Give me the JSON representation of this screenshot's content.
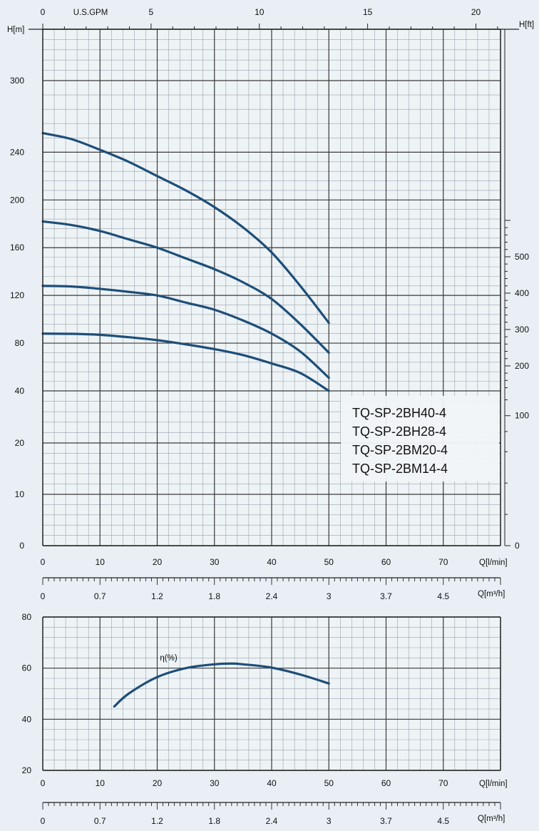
{
  "colors": {
    "curve": "#1d4e79",
    "grid_major": "#3a3a3a",
    "grid_minor": "#9aa4ad",
    "axis": "#222222"
  },
  "chart_data": [
    {
      "type": "line",
      "title": "",
      "xlabel": "Q[l/min]",
      "xlabel_secondary": "Q[m³/h]",
      "xlabel_top": "U.S.GPM",
      "ylabel": "H[m]",
      "ylabel_right": "H[ft]",
      "x_ticks": [
        "0",
        "10",
        "20",
        "30",
        "40",
        "50",
        "60",
        "70"
      ],
      "x_secondary_ticks": [
        "0",
        "0.7",
        "1.2",
        "1.8",
        "2.4",
        "3",
        "3.7",
        "4.5"
      ],
      "x_top_ticks": [
        "0",
        "5",
        "10",
        "15",
        "20"
      ],
      "y_ticks": [
        "0",
        "10",
        "20",
        "40",
        "80",
        "120",
        "160",
        "200",
        "240",
        "300"
      ],
      "y_right_ticks": [
        "0",
        "100",
        "200",
        "300",
        "400",
        "500"
      ],
      "grid": true,
      "legend": {
        "placement": "right",
        "entries": [
          "TQ-SP-2BH40-4",
          "TQ-SP-2BH28-4",
          "TQ-SP-2BM20-4",
          "TQ-SP-2BM14-4"
        ]
      },
      "series": [
        {
          "x": [
            0,
            5,
            10,
            15,
            20,
            25,
            30,
            35,
            40,
            45,
            50
          ],
          "y": [
            256,
            251,
            242,
            232,
            220,
            208,
            194,
            177,
            156,
            128,
            97
          ]
        },
        {
          "x": [
            0,
            5,
            10,
            15,
            20,
            25,
            30,
            35,
            40,
            45,
            50
          ],
          "y": [
            182,
            179,
            174,
            167,
            160,
            151,
            142,
            131,
            117,
            96,
            72
          ]
        },
        {
          "x": [
            0,
            5,
            10,
            15,
            20,
            25,
            30,
            35,
            40,
            45,
            50
          ],
          "y": [
            128,
            127.5,
            125.5,
            123,
            120,
            114,
            108,
            99,
            88,
            73,
            51
          ]
        },
        {
          "x": [
            0,
            5,
            10,
            15,
            20,
            25,
            30,
            35,
            40,
            45,
            50
          ],
          "y": [
            88,
            87.8,
            87,
            85,
            82.5,
            79,
            75,
            70,
            63,
            55,
            40
          ]
        }
      ]
    },
    {
      "type": "line",
      "title": "",
      "xlabel": "Q[l/min]",
      "xlabel_secondary": "Q[m³/h]",
      "x_ticks": [
        "0",
        "10",
        "20",
        "30",
        "40",
        "50",
        "60",
        "70"
      ],
      "x_secondary_ticks": [
        "0",
        "0.7",
        "1.2",
        "1.8",
        "2.4",
        "3",
        "3.7",
        "4.5"
      ],
      "y_ticks": [
        "20",
        "40",
        "60",
        "80"
      ],
      "xlim": [
        0,
        80
      ],
      "ylim": [
        20,
        80
      ],
      "grid": true,
      "series": [
        {
          "name": "η(%)",
          "x": [
            12.5,
            15,
            20,
            25,
            30,
            33,
            35,
            40,
            45,
            50
          ],
          "y": [
            45,
            50,
            56.5,
            60,
            61.5,
            61.8,
            61.5,
            60.2,
            57.5,
            54
          ]
        }
      ]
    }
  ]
}
